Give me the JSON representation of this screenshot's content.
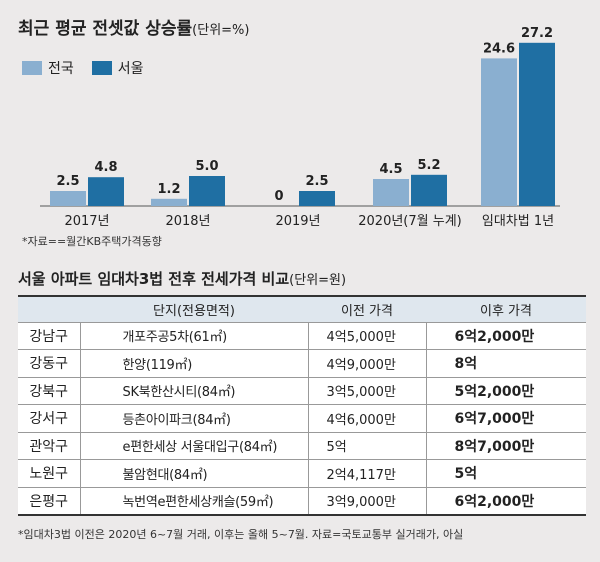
{
  "chart_data": {
    "type": "bar",
    "title": "최근 평균 전셋값 상승률",
    "unit": "(단위=%)",
    "categories": [
      "2017년",
      "2018년",
      "2019년",
      "2020년(7월 누계)",
      "임대차법 1년"
    ],
    "series": [
      {
        "name": "전국",
        "values": [
          2.5,
          1.2,
          0,
          4.5,
          24.6
        ],
        "labels": [
          "2.5",
          "1.2",
          "0",
          "4.5",
          "24.6"
        ],
        "color": "#8aafd0"
      },
      {
        "name": "서울",
        "values": [
          4.8,
          5.0,
          2.5,
          5.2,
          27.2
        ],
        "labels": [
          "4.8",
          "5.0",
          "2.5",
          "5.2",
          "27.2"
        ],
        "color": "#1f6fa3"
      }
    ],
    "legend_position": "top-left",
    "grid": false,
    "source": "*자료==월간KB주택가격동향"
  },
  "table": {
    "title": "서울 아파트 임대차3법 전후 전세가격 비교",
    "unit": "(단위=원)",
    "headers": [
      "",
      "단지(전용면적)",
      "이전 가격",
      "이후 가격"
    ],
    "rows": [
      {
        "district": "강남구",
        "complex": "개포주공5차(61㎡)",
        "before": "4억5,000만",
        "after": "6억2,000만"
      },
      {
        "district": "강동구",
        "complex": "한양(119㎡)",
        "before": "4억9,000만",
        "after": "8억"
      },
      {
        "district": "강북구",
        "complex": "SK북한산시티(84㎡)",
        "before": "3억5,000만",
        "after": "5억2,000만"
      },
      {
        "district": "강서구",
        "complex": "등촌아이파크(84㎡)",
        "before": "4억6,000만",
        "after": "6억7,000만"
      },
      {
        "district": "관악구",
        "complex": "e편한세상 서울대입구(84㎡)",
        "before": "5억",
        "after": "8억7,000만"
      },
      {
        "district": "노원구",
        "complex": "불암현대(84㎡)",
        "before": "2억4,117만",
        "after": "5억"
      },
      {
        "district": "은평구",
        "complex": "녹번역e편한세상캐슬(59㎡)",
        "before": "3억9,000만",
        "after": "6억2,000만"
      }
    ]
  },
  "footnote": "*임대차3법 이전은 2020년 6~7월 거래, 이후는 올해 5~7월. 자료=국토교통부 실거래가, 아실"
}
